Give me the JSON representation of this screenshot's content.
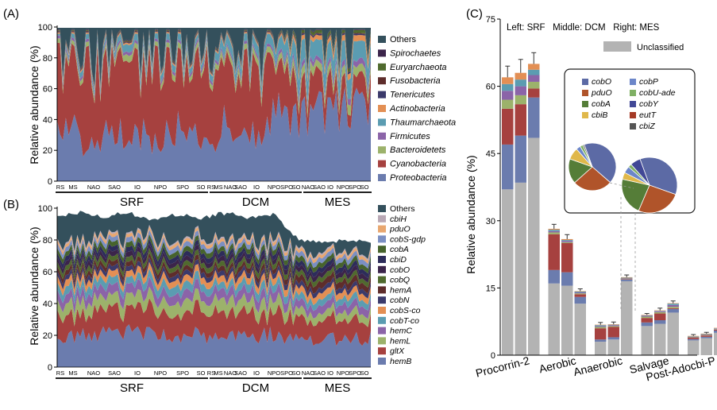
{
  "panel_labels": {
    "a": "(A)",
    "b": "(B)",
    "c": "(C)"
  },
  "colors": {
    "Proteobacteria": "#6b7cae",
    "Cyanobacteria": "#a6413f",
    "Bacteroidetets": "#9cb26b",
    "Firmicutes": "#8b64a8",
    "Thaumarchaeota": "#5b9cb1",
    "Actinobacteria": "#e38f54",
    "Tenericutes": "#3b3a6b",
    "Fusobacteria": "#5e2d2b",
    "Euryarchaeota": "#506a2e",
    "Spirochaetes": "#3b244a",
    "Others": "#34505c",
    "hemB": "#6b7cae",
    "gltX": "#a6413f",
    "hemL": "#9cb26b",
    "hemC": "#8b64a8",
    "cobT-co": "#5b9cb1",
    "cobS-co": "#e38f54",
    "cobN": "#3b3a6b",
    "hemA": "#5e2d2b",
    "cobQ": "#506a2e",
    "cobO": "#3b244a",
    "cbiD": "#2d2c5a",
    "cobA": "#46632c",
    "cobS-gdp": "#7b8fc2",
    "pduO": "#e8a770",
    "cbiH": "#b9a8b5",
    "unclassified": "#b3b3b3",
    "pie_cobO": "#5c6aa5",
    "pie_pduO": "#b0542a",
    "pie_cobA": "#557d38",
    "pie_cbiB": "#e0b84a",
    "pie_cobP": "#6c86c9",
    "pie_cobU_ade": "#7fb064",
    "pie_cobY": "#414896",
    "pie_eutT": "#a53a26",
    "pie_cbiZ": "#555555"
  },
  "chart_data": [
    {
      "type": "area",
      "panel": "(A)",
      "ylabel": "Relative abundance (%)",
      "ylim": [
        0,
        100
      ],
      "y_ticks": [
        "0",
        "20",
        "40",
        "60",
        "80",
        "100"
      ],
      "x_region_labels": [
        "RS",
        "MS",
        "NAO",
        "SAO",
        "IO",
        "NPO",
        "SPO",
        "SO",
        "RS",
        "MS",
        "NAO",
        "SAO",
        "IO",
        "NPO",
        "SPO",
        "SO",
        "NAO",
        "SAO",
        "IO",
        "NPO",
        "SPO",
        "SO"
      ],
      "groups": [
        "SRF",
        "DCM",
        "MES"
      ],
      "legend_position": "right",
      "legend": [
        "Others",
        "Spirochaetes",
        "Euryarchaeota",
        "Fusobacteria",
        "Tenericutes",
        "Actinobacteria",
        "Thaumarchaeota",
        "Firmicutes",
        "Bacteroidetets",
        "Cyanobacteria",
        "Proteobacteria"
      ],
      "legend_italic": [
        false,
        true,
        true,
        true,
        true,
        true,
        true,
        true,
        true,
        true,
        true
      ],
      "series_order": [
        "Proteobacteria",
        "Cyanobacteria",
        "Bacteroidetets",
        "Firmicutes",
        "Thaumarchaeota",
        "Actinobacteria",
        "Tenericutes",
        "Fusobacteria",
        "Euryarchaeota",
        "Spirochaetes",
        "Others"
      ],
      "anchors": {
        "Proteobacteria": [
          40,
          28,
          30,
          35,
          27,
          40,
          22,
          36,
          30,
          40,
          45,
          44,
          50,
          50
        ],
        "Cyanobacteria": [
          48,
          55,
          52,
          45,
          55,
          40,
          60,
          42,
          48,
          38,
          20,
          22,
          12,
          12
        ],
        "Bacteroidetets": [
          3,
          3,
          3,
          4,
          3,
          4,
          3,
          4,
          4,
          4,
          6,
          5,
          6,
          6
        ],
        "Firmicutes": [
          2,
          2,
          2,
          2,
          2,
          2,
          2,
          2,
          2,
          2,
          4,
          3,
          4,
          4
        ],
        "Thaumarchaeota": [
          1,
          4,
          3,
          5,
          4,
          5,
          3,
          7,
          6,
          7,
          14,
          13,
          13,
          13
        ],
        "Actinobacteria": [
          1,
          1,
          1,
          1,
          1,
          1,
          1,
          1,
          1,
          1,
          3,
          3,
          4,
          4
        ],
        "Tenericutes": [
          0.5,
          0.5,
          0.5,
          0.5,
          0.5,
          0.5,
          0.5,
          0.5,
          0.5,
          0.5,
          1,
          1,
          1,
          1
        ],
        "Fusobacteria": [
          0.5,
          0.5,
          0.5,
          0.5,
          0.5,
          0.5,
          0.5,
          0.5,
          0.5,
          0.5,
          0.5,
          0.5,
          0.5,
          0.5
        ],
        "Euryarchaeota": [
          0.5,
          0.5,
          0.5,
          0.5,
          0.5,
          0.5,
          0.5,
          0.5,
          0.5,
          0.5,
          2,
          2,
          2,
          2
        ],
        "Spirochaetes": [
          0.5,
          0.5,
          0.5,
          0.5,
          0.5,
          0.5,
          0.5,
          0.5,
          0.5,
          0.5,
          0.5,
          0.5,
          0.5,
          0.5
        ]
      }
    },
    {
      "type": "area",
      "panel": "(B)",
      "ylabel": "Relative abundance (%)",
      "ylim": [
        0,
        100
      ],
      "y_ticks": [
        "0",
        "20",
        "40",
        "60",
        "80",
        "100"
      ],
      "x_region_labels": [
        "RS",
        "MS",
        "NAO",
        "SAO",
        "IO",
        "NPO",
        "SPO",
        "SO",
        "RS",
        "MS",
        "NAO",
        "SAO",
        "IO",
        "NPO",
        "SPO",
        "SO",
        "NAO",
        "SAO",
        "IO",
        "NPO",
        "SPO",
        "SO"
      ],
      "groups": [
        "SRF",
        "DCM",
        "MES"
      ],
      "legend_position": "right",
      "legend": [
        "Others",
        "cbiH",
        "pduO",
        "cobS-gdp",
        "cobA",
        "cbiD",
        "cobO",
        "cobQ",
        "hemA",
        "cobN",
        "cobS-co",
        "cobT-co",
        "hemC",
        "hemL",
        "gltX",
        "hemB"
      ],
      "legend_italic": [
        false,
        true,
        true,
        true,
        true,
        true,
        true,
        true,
        true,
        true,
        true,
        true,
        true,
        true,
        true,
        true
      ],
      "series_order": [
        "hemB",
        "gltX",
        "hemL",
        "hemC",
        "cobT-co",
        "cobS-co",
        "cobN",
        "hemA",
        "cobQ",
        "cobO",
        "cbiD",
        "cobA",
        "cobS-gdp",
        "pduO",
        "cbiH",
        "Others"
      ],
      "anchors": {
        "hemB": [
          20,
          21,
          20,
          21,
          20,
          21,
          20,
          21,
          20,
          21,
          18,
          18,
          18,
          18
        ],
        "gltX": [
          15,
          14,
          15,
          14,
          15,
          13,
          15,
          14,
          15,
          14,
          12,
          12,
          12,
          12
        ],
        "hemL": [
          7,
          8,
          7,
          8,
          7,
          8,
          7,
          8,
          7,
          8,
          5,
          5,
          5,
          5
        ],
        "hemC": [
          6,
          6,
          6,
          6,
          6,
          6,
          6,
          6,
          6,
          6,
          5,
          5,
          5,
          5
        ],
        "cobT-co": [
          5,
          5,
          5,
          4,
          5,
          5,
          5,
          4,
          5,
          5,
          4,
          4,
          4,
          4
        ],
        "cobS-co": [
          4,
          4,
          4,
          4,
          4,
          4,
          4,
          4,
          4,
          4,
          4,
          4,
          4,
          4
        ],
        "cobN": [
          3,
          3,
          3,
          3,
          3,
          3,
          3,
          3,
          3,
          3,
          3,
          3,
          3,
          3
        ],
        "hemA": [
          3,
          3,
          3,
          3,
          3,
          3,
          3,
          3,
          3,
          3,
          4,
          4,
          4,
          4
        ],
        "cobQ": [
          3,
          3,
          3,
          3,
          3,
          3,
          3,
          3,
          3,
          3,
          3,
          3,
          3,
          3
        ],
        "cobO": [
          3,
          3,
          3,
          3,
          3,
          3,
          3,
          3,
          3,
          3,
          3,
          3,
          3,
          3
        ],
        "cbiD": [
          3,
          3,
          3,
          3,
          3,
          3,
          3,
          3,
          3,
          3,
          3,
          3,
          3,
          3
        ],
        "cobA": [
          3,
          3,
          3,
          3,
          3,
          3,
          3,
          3,
          3,
          3,
          3,
          3,
          3,
          3
        ],
        "cobS-gdp": [
          3,
          3,
          3,
          3,
          3,
          3,
          3,
          3,
          3,
          3,
          3,
          3,
          3,
          3
        ],
        "pduO": [
          2,
          2,
          2,
          2,
          2,
          2,
          2,
          2,
          2,
          2,
          2,
          2,
          2,
          2
        ],
        "cbiH": [
          1,
          1,
          1,
          1,
          1,
          1,
          1,
          1,
          1,
          1,
          1,
          1,
          1,
          1
        ],
        "total": [
          96,
          97,
          95,
          97,
          93,
          96,
          94,
          97,
          94,
          96,
          80,
          79,
          80,
          79
        ]
      }
    },
    {
      "type": "bar",
      "panel": "(C)",
      "subtitle": "Left: SRF   Middle: DCM   Right: MES",
      "ylabel": "Relative abundance (%)",
      "ylim": [
        0,
        75
      ],
      "y_ticks": [
        "0",
        "15",
        "30",
        "45",
        "60",
        "75"
      ],
      "categories": [
        "Procorrin-2",
        "Aerobic",
        "Anaerobic",
        "Salvage",
        "Post-Adocbi-P"
      ],
      "bars_per_category": [
        "SRF",
        "DCM",
        "MES"
      ],
      "legend": {
        "label": "Unclassified"
      },
      "bars": [
        {
          "category": "Procorrin-2",
          "unclassified": 37,
          "layers": [
            10,
            8,
            2,
            2,
            1.5,
            1.5
          ],
          "error": 2.5
        },
        {
          "category": "Procorrin-2",
          "unclassified": 38.5,
          "layers": [
            10.5,
            7,
            2,
            2,
            1.5,
            1.5
          ],
          "error": 3
        },
        {
          "category": "Procorrin-2",
          "unclassified": 48.5,
          "layers": [
            9,
            2,
            1.5,
            1.5,
            1.2,
            1.3
          ],
          "error": 2.5
        },
        {
          "category": "Aerobic",
          "unclassified": 16,
          "layers": [
            3,
            8,
            0.4,
            0.3,
            0.3,
            0.2
          ],
          "error": 1
        },
        {
          "category": "Aerobic",
          "unclassified": 15.5,
          "layers": [
            3,
            6.5,
            0.2,
            0.3,
            0.2,
            0.2
          ],
          "error": 1
        },
        {
          "category": "Aerobic",
          "unclassified": 11.5,
          "layers": [
            1.5,
            0.6,
            0.2,
            0.2,
            0.2,
            0.1
          ],
          "error": 0.5
        },
        {
          "category": "Anaerobic",
          "unclassified": 3,
          "layers": [
            0.5,
            2.5,
            0.3,
            0.2,
            0.2,
            0.1
          ],
          "error": 0.5
        },
        {
          "category": "Anaerobic",
          "unclassified": 3.5,
          "layers": [
            0.5,
            2.3,
            0.2,
            0.2,
            0.1,
            0.1
          ],
          "error": 0.5
        },
        {
          "category": "Anaerobic",
          "unclassified": 16.5,
          "layers": [
            0.4,
            0.1,
            0.1,
            0.1,
            0.1,
            0.1
          ],
          "error": 0.5
        },
        {
          "category": "Salvage",
          "unclassified": 6.5,
          "layers": [
            0.8,
            1,
            0.3,
            0.2,
            0.1,
            0.1
          ],
          "error": 0.3
        },
        {
          "category": "Salvage",
          "unclassified": 7,
          "layers": [
            0.8,
            1.5,
            0.3,
            0.2,
            0.1,
            0.1
          ],
          "error": 0.5
        },
        {
          "category": "Salvage",
          "unclassified": 9.5,
          "layers": [
            0.8,
            0.2,
            0.3,
            0.4,
            0.3,
            0.1
          ],
          "error": 0.5
        },
        {
          "category": "Post-Adocbi-P",
          "unclassified": 3.3,
          "layers": [
            0.3,
            0.3,
            0.1,
            0.1,
            0.1,
            0.1
          ],
          "error": 0.3
        },
        {
          "category": "Post-Adocbi-P",
          "unclassified": 3.8,
          "layers": [
            0.3,
            0.3,
            0.1,
            0.1,
            0.1,
            0.1
          ],
          "error": 0.3
        },
        {
          "category": "Post-Adocbi-P",
          "unclassified": 5,
          "layers": [
            0.5,
            0.2,
            0.1,
            0.1,
            0.1,
            0.1
          ],
          "error": 0.3
        }
      ],
      "layer_colors": [
        "#6b7cae",
        "#a6413f",
        "#9cb26b",
        "#8b64a8",
        "#5b9cb1",
        "#e38f54"
      ]
    },
    {
      "type": "pie",
      "panel": "(C) inset",
      "legend_left": [
        "cobO",
        "pduO",
        "cobA",
        "cbiB"
      ],
      "legend_right": [
        "cobP",
        "cobU-ade",
        "cobY",
        "eutT",
        "cbiZ"
      ],
      "pies": [
        {
          "name": "",
          "slices": [
            {
              "label": "cobO",
              "value": 42
            },
            {
              "label": "pduO",
              "value": 27
            },
            {
              "label": "cobA",
              "value": 17
            },
            {
              "label": "cbiB",
              "value": 8
            },
            {
              "label": "cobP",
              "value": 3
            },
            {
              "label": "cobU-ade",
              "value": 2
            },
            {
              "label": "cbiZ",
              "value": 1
            }
          ]
        },
        {
          "name": "",
          "slices": [
            {
              "label": "cobO",
              "value": 36
            },
            {
              "label": "pduO",
              "value": 26
            },
            {
              "label": "cobA",
              "value": 22
            },
            {
              "label": "cbiB",
              "value": 4
            },
            {
              "label": "cobP",
              "value": 4
            },
            {
              "label": "cobU-ade",
              "value": 2
            },
            {
              "label": "cobY",
              "value": 6
            }
          ]
        }
      ]
    }
  ]
}
